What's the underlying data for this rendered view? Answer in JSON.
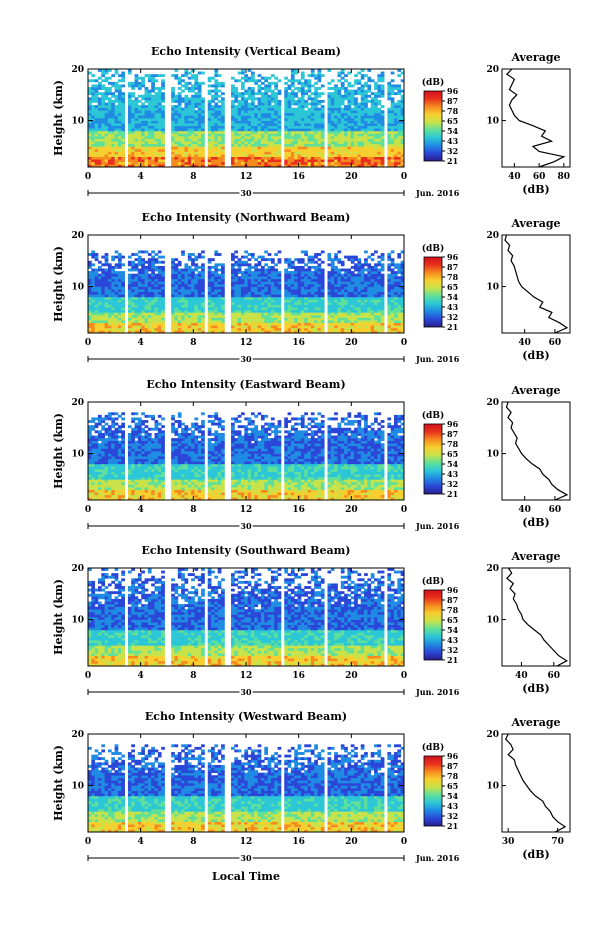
{
  "figure": {
    "local_time_label": "Local Time",
    "date_label": "Jun. 2016",
    "day_label": "30",
    "average_title": "Average",
    "db_label": "(dB)",
    "height_label": "Height (km)",
    "colorbar_ticks": [
      "96",
      "87",
      "78",
      "65",
      "54",
      "43",
      "32",
      "21"
    ],
    "colors": {
      "cmap": [
        "#2a1e8c",
        "#2b47d8",
        "#1f8be3",
        "#2cc7d7",
        "#5fe09a",
        "#c8e24a",
        "#f7cf2f",
        "#f68a1f",
        "#e8311d",
        "#d4101a"
      ],
      "axis": "#000000",
      "gap": "#ffffff"
    }
  },
  "chart_data": [
    {
      "type": "heatmap",
      "title": "Echo Intensity (Vertical Beam)",
      "xlabel": "",
      "ylabel": "Height (km)",
      "x_ticks": [
        "0",
        "4",
        "8",
        "12",
        "16",
        "20",
        "0"
      ],
      "y_ticks": [
        "20",
        "10"
      ],
      "xlim": [
        0,
        24
      ],
      "ylim": [
        1,
        20
      ],
      "colorbar": {
        "label": "(dB)",
        "ticks": [
          96,
          87,
          78,
          65,
          54,
          43,
          32,
          21
        ]
      },
      "profile_top_km": 20,
      "data_gaps_hours": [
        [
          2.8,
          3.1
        ],
        [
          5.8,
          6.3
        ],
        [
          8.8,
          9.1
        ],
        [
          10.4,
          10.9
        ],
        [
          14.7,
          15.0
        ],
        [
          17.9,
          18.2
        ],
        [
          22.5,
          22.8
        ]
      ],
      "average_profile": {
        "xlabel": "(dB)",
        "x_ticks": [
          40,
          60,
          80
        ],
        "xlim": [
          30,
          85
        ],
        "height_km": [
          20,
          19,
          18,
          17,
          16,
          15,
          14,
          13,
          12,
          11,
          10,
          9,
          8,
          7,
          6,
          5,
          4,
          3,
          2,
          1
        ],
        "db": [
          38,
          34,
          40,
          38,
          36,
          42,
          38,
          36,
          38,
          40,
          44,
          55,
          65,
          62,
          70,
          55,
          60,
          80,
          72,
          60
        ]
      }
    },
    {
      "type": "heatmap",
      "title": "Echo Intensity (Northward Beam)",
      "xlabel": "",
      "ylabel": "Height (km)",
      "x_ticks": [
        "0",
        "4",
        "8",
        "12",
        "16",
        "20",
        "0"
      ],
      "y_ticks": [
        "20",
        "10"
      ],
      "xlim": [
        0,
        24
      ],
      "ylim": [
        1,
        20
      ],
      "colorbar": {
        "label": "(dB)",
        "ticks": [
          96,
          87,
          78,
          65,
          54,
          43,
          32,
          21
        ]
      },
      "profile_top_km": 17,
      "data_gaps_hours": [
        [
          2.8,
          3.1
        ],
        [
          5.8,
          6.3
        ],
        [
          8.8,
          9.1
        ],
        [
          10.4,
          10.9
        ],
        [
          14.7,
          15.0
        ],
        [
          17.9,
          18.2
        ],
        [
          22.5,
          22.8
        ]
      ],
      "average_profile": {
        "xlabel": "(dB)",
        "x_ticks": [
          40,
          60
        ],
        "xlim": [
          25,
          70
        ],
        "height_km": [
          20,
          19,
          18,
          17,
          16,
          15,
          14,
          13,
          12,
          11,
          10,
          9,
          8,
          7,
          6,
          5,
          4,
          3,
          2,
          1
        ],
        "db": [
          28,
          27,
          30,
          29,
          32,
          31,
          33,
          34,
          35,
          36,
          38,
          42,
          46,
          52,
          50,
          58,
          56,
          63,
          68,
          60
        ]
      }
    },
    {
      "type": "heatmap",
      "title": "Echo Intensity (Eastward Beam)",
      "xlabel": "",
      "ylabel": "Height (km)",
      "x_ticks": [
        "0",
        "4",
        "8",
        "12",
        "16",
        "20",
        "0"
      ],
      "y_ticks": [
        "20",
        "10"
      ],
      "xlim": [
        0,
        24
      ],
      "ylim": [
        1,
        20
      ],
      "colorbar": {
        "label": "(dB)",
        "ticks": [
          96,
          87,
          78,
          65,
          54,
          43,
          32,
          21
        ]
      },
      "profile_top_km": 18,
      "data_gaps_hours": [
        [
          2.8,
          3.1
        ],
        [
          5.8,
          6.3
        ],
        [
          8.8,
          9.1
        ],
        [
          10.4,
          10.9
        ],
        [
          14.7,
          15.0
        ],
        [
          17.9,
          18.2
        ],
        [
          22.5,
          22.8
        ]
      ],
      "average_profile": {
        "xlabel": "(dB)",
        "x_ticks": [
          40,
          60
        ],
        "xlim": [
          25,
          70
        ],
        "height_km": [
          20,
          19,
          18,
          17,
          16,
          15,
          14,
          13,
          12,
          11,
          10,
          9,
          8,
          7,
          6,
          5,
          4,
          3,
          2,
          1
        ],
        "db": [
          29,
          28,
          31,
          29,
          32,
          31,
          33,
          35,
          34,
          36,
          38,
          41,
          45,
          50,
          52,
          56,
          58,
          62,
          68,
          60
        ]
      }
    },
    {
      "type": "heatmap",
      "title": "Echo Intensity (Southward Beam)",
      "xlabel": "",
      "ylabel": "Height (km)",
      "x_ticks": [
        "0",
        "4",
        "8",
        "12",
        "16",
        "20",
        "0"
      ],
      "y_ticks": [
        "20",
        "10"
      ],
      "xlim": [
        0,
        24
      ],
      "ylim": [
        1,
        20
      ],
      "colorbar": {
        "label": "(dB)",
        "ticks": [
          96,
          87,
          78,
          65,
          54,
          43,
          32,
          21
        ]
      },
      "profile_top_km": 20,
      "data_gaps_hours": [
        [
          2.8,
          3.1
        ],
        [
          5.8,
          6.3
        ],
        [
          8.8,
          9.1
        ],
        [
          10.4,
          10.9
        ],
        [
          14.7,
          15.0
        ],
        [
          17.9,
          18.2
        ],
        [
          22.5,
          22.8
        ]
      ],
      "average_profile": {
        "xlabel": "(dB)",
        "x_ticks": [
          40,
          60
        ],
        "xlim": [
          28,
          70
        ],
        "height_km": [
          20,
          19,
          18,
          17,
          16,
          15,
          14,
          13,
          12,
          11,
          10,
          9,
          8,
          7,
          6,
          5,
          4,
          3,
          2,
          1
        ],
        "db": [
          32,
          34,
          31,
          35,
          33,
          36,
          35,
          37,
          38,
          40,
          41,
          44,
          48,
          52,
          54,
          57,
          60,
          63,
          68,
          62
        ]
      }
    },
    {
      "type": "heatmap",
      "title": "Echo Intensity (Westward Beam)",
      "xlabel": "Local Time",
      "ylabel": "Height (km)",
      "x_ticks": [
        "0",
        "4",
        "8",
        "12",
        "16",
        "20",
        "0"
      ],
      "y_ticks": [
        "20",
        "10"
      ],
      "xlim": [
        0,
        24
      ],
      "ylim": [
        1,
        20
      ],
      "colorbar": {
        "label": "(dB)",
        "ticks": [
          96,
          87,
          78,
          65,
          54,
          43,
          32,
          21
        ]
      },
      "profile_top_km": 18,
      "data_gaps_hours": [
        [
          2.8,
          3.1
        ],
        [
          5.8,
          6.3
        ],
        [
          8.8,
          9.1
        ],
        [
          10.4,
          10.9
        ],
        [
          14.7,
          15.0
        ],
        [
          17.9,
          18.2
        ],
        [
          22.5,
          22.8
        ]
      ],
      "average_profile": {
        "xlabel": "(dB)",
        "x_ticks": [
          30,
          70
        ],
        "xlim": [
          25,
          80
        ],
        "height_km": [
          20,
          19,
          18,
          17,
          16,
          15,
          14,
          13,
          12,
          11,
          10,
          9,
          8,
          7,
          6,
          5,
          4,
          3,
          2,
          1
        ],
        "db": [
          30,
          28,
          32,
          34,
          30,
          35,
          36,
          38,
          40,
          42,
          45,
          48,
          52,
          58,
          60,
          64,
          66,
          70,
          76,
          68
        ]
      }
    }
  ]
}
